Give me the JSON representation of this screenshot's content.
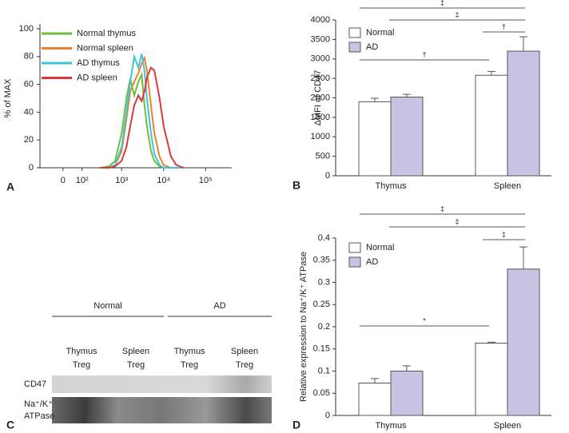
{
  "chart_data": [
    {
      "panel": "A",
      "type": "line",
      "ylabel": "% of MAX",
      "xscale": "biexponential",
      "xlim": [
        -130,
        420000
      ],
      "xticks": [
        0,
        {
          "value": 100,
          "label": "10²"
        },
        {
          "value": 1000,
          "label": "10³"
        },
        {
          "value": 10000,
          "label": "10⁴"
        },
        {
          "value": 100000,
          "label": "10⁵"
        }
      ],
      "ylim": [
        0,
        100
      ],
      "yticks": [
        0,
        20,
        40,
        60,
        80,
        100
      ],
      "legend": "upper left",
      "x": [
        300,
        500,
        700,
        1000,
        1300,
        1600,
        2000,
        2500,
        3000,
        3500,
        4000,
        5000,
        6000,
        8000,
        10000,
        15000,
        20000,
        30000
      ],
      "series": [
        {
          "name": "Normal thymus",
          "color": "#6cbf3a",
          "values": [
            0,
            1,
            5,
            25,
            50,
            64,
            52,
            62,
            67,
            45,
            30,
            12,
            5,
            1,
            0,
            0,
            0,
            0
          ]
        },
        {
          "name": "Normal spleen",
          "color": "#e9822e",
          "values": [
            0,
            0,
            2,
            12,
            35,
            55,
            62,
            68,
            75,
            79,
            70,
            45,
            25,
            8,
            2,
            0,
            0,
            0
          ]
        },
        {
          "name": "AD thymus",
          "color": "#3ec3d8",
          "values": [
            0,
            0,
            2,
            15,
            40,
            62,
            80,
            72,
            82,
            70,
            50,
            25,
            10,
            2,
            0,
            0,
            0,
            0
          ]
        },
        {
          "name": "AD spleen",
          "color": "#d9373a",
          "values": [
            0,
            0,
            1,
            5,
            15,
            30,
            45,
            52,
            48,
            55,
            65,
            72,
            70,
            50,
            30,
            8,
            2,
            0
          ]
        }
      ]
    },
    {
      "panel": "B",
      "type": "bar",
      "ylabel": "ΔMFI of CD47",
      "categories": [
        "Thymus",
        "Spleen"
      ],
      "ylim": [
        0,
        4000
      ],
      "yticks": [
        0,
        500,
        1000,
        1500,
        2000,
        2500,
        3000,
        3500,
        4000
      ],
      "legend": "upper left",
      "series": [
        {
          "name": "Normal",
          "color": "#ffffff",
          "values": [
            1900,
            2580
          ],
          "errors": [
            90,
            100
          ]
        },
        {
          "name": "AD",
          "color": "#c8c3e3",
          "values": [
            2020,
            3200
          ],
          "errors": [
            70,
            370
          ]
        }
      ],
      "annotations": [
        "‡",
        "‡",
        "†",
        "†"
      ]
    },
    {
      "panel": "D",
      "type": "bar",
      "ylabel": "Relative expression to Na⁺/K⁺ ATPase",
      "categories": [
        "Thymus",
        "Spleen"
      ],
      "ylim": [
        0,
        0.4
      ],
      "yticks": [
        0,
        0.05,
        0.1,
        0.15,
        0.2,
        0.25,
        0.3,
        0.35,
        0.4
      ],
      "legend": "upper left",
      "series": [
        {
          "name": "Normal",
          "color": "#ffffff",
          "values": [
            0.073,
            0.163
          ],
          "errors": [
            0.01,
            0.002
          ]
        },
        {
          "name": "AD",
          "color": "#c8c3e3",
          "values": [
            0.1,
            0.33
          ],
          "errors": [
            0.012,
            0.05
          ]
        }
      ],
      "annotations": [
        "‡",
        "‡",
        "‡",
        "*"
      ]
    }
  ],
  "blot": {
    "panel": "C",
    "groups": [
      "Normal",
      "AD"
    ],
    "lanes": [
      [
        "Thymus",
        "Treg"
      ],
      [
        "Spleen",
        "Treg"
      ],
      [
        "Thymus",
        "Treg"
      ],
      [
        "Spleen",
        "Treg"
      ]
    ],
    "rows": [
      [
        "CD47"
      ],
      [
        "Na⁺/K⁺",
        "ATPase"
      ]
    ]
  }
}
